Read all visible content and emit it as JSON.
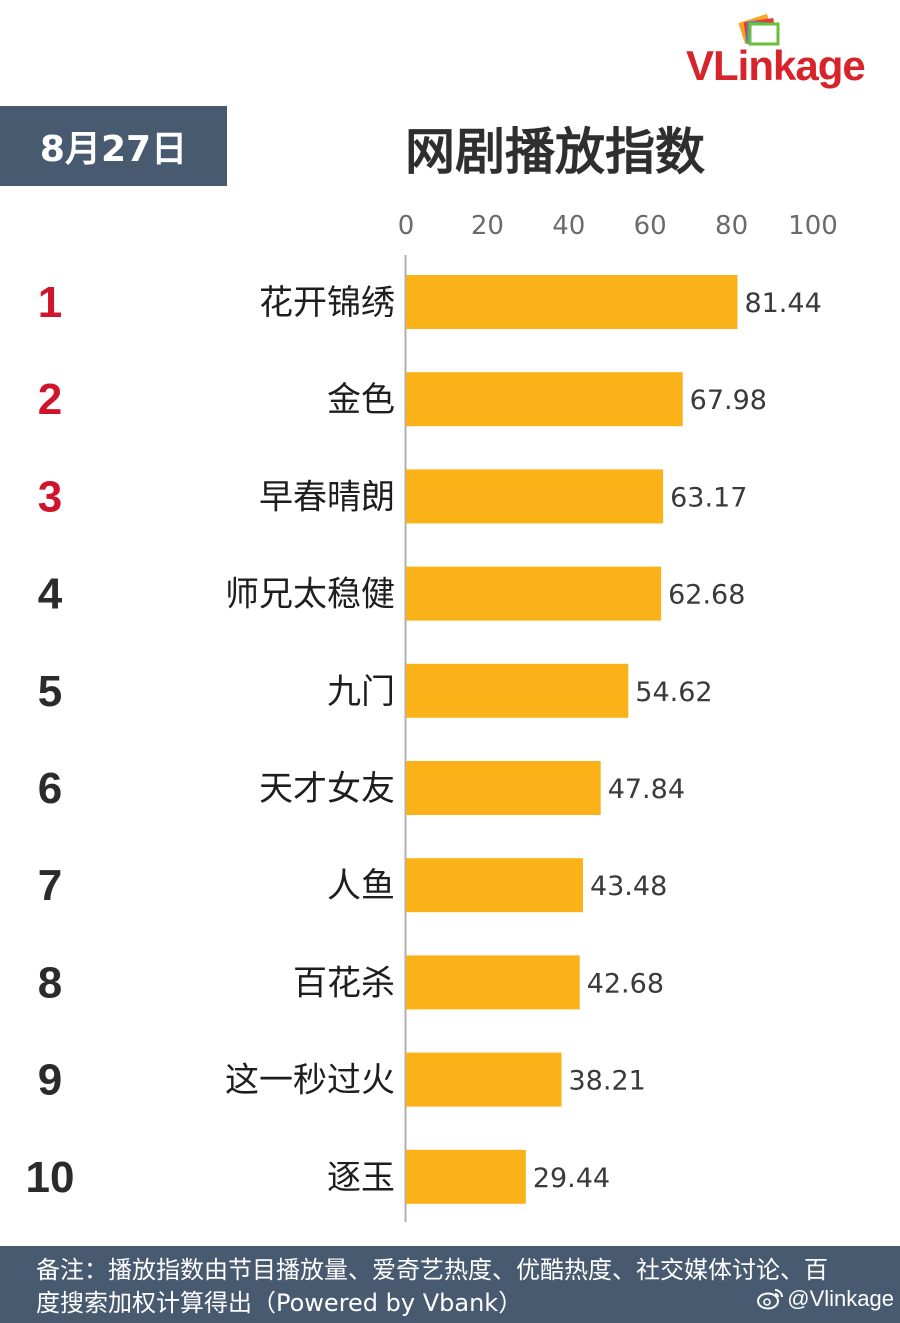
{
  "brand": {
    "logo_text": "VLinkage"
  },
  "date_label": "8月27日",
  "footnote": {
    "text": "备注：播放指数由节目播放量、爱奇艺热度、优酷热度、社交媒体讨论、百度搜索加权计算得出（Powered by Vbank）"
  },
  "watermark": "@Vlinkage",
  "colors": {
    "bar": "#fbb118",
    "rank_top": "#d0142c",
    "rank_other": "#2b2b2b",
    "panel": "#475a70"
  },
  "chart_data": {
    "type": "bar",
    "orientation": "horizontal",
    "title": "网剧播放指数",
    "xlim": [
      0,
      100
    ],
    "ticks": [
      0,
      20,
      40,
      60,
      80,
      100
    ],
    "categories": [
      "花开锦绣",
      "金色",
      "早春晴朗",
      "师兄太稳健",
      "九门",
      "天才女友",
      "人鱼",
      "百花杀",
      "这一秒过火",
      "逐玉"
    ],
    "ranks": [
      "1",
      "2",
      "3",
      "4",
      "5",
      "6",
      "7",
      "8",
      "9",
      "10"
    ],
    "values": [
      81.44,
      67.98,
      63.17,
      62.68,
      54.62,
      47.84,
      43.48,
      42.68,
      38.21,
      29.44
    ],
    "value_labels": [
      "81.44",
      "67.98",
      "63.17",
      "62.68",
      "54.62",
      "47.84",
      "43.48",
      "42.68",
      "38.21",
      "29.44"
    ],
    "grid": false,
    "legend": "none"
  }
}
